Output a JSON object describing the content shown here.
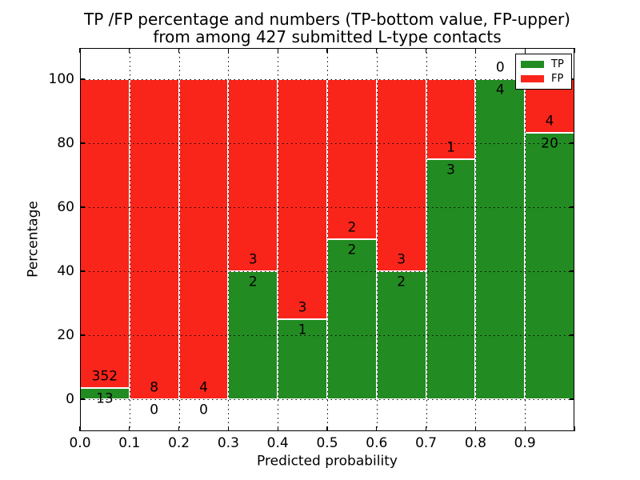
{
  "title": {
    "line1": "TP /FP percentage and numbers (TP-bottom value, FP-upper)",
    "line2": "from among 427 submitted L-type contacts"
  },
  "x_axis": {
    "label": "Predicted probability",
    "tick_labels": [
      "0.0",
      "0.1",
      "0.2",
      "0.3",
      "0.4",
      "0.5",
      "0.6",
      "0.7",
      "0.8",
      "0.9"
    ]
  },
  "y_axis": {
    "label": "Percentage",
    "tick_labels": [
      "0",
      "20",
      "40",
      "60",
      "80",
      "100"
    ]
  },
  "legend": {
    "items": [
      {
        "label": "TP",
        "color": "#228B22"
      },
      {
        "label": "FP",
        "color": "#f9251b"
      }
    ]
  },
  "colors": {
    "tp_green": "#228B22",
    "fp_red": "#f9251b",
    "bar_edge": "#ffffff",
    "grid": "#000000",
    "background": "#ffffff"
  },
  "chart_data": {
    "type": "bar",
    "stacked": true,
    "normalized_to_percent": true,
    "title": "TP /FP percentage and numbers (TP-bottom value, FP-upper) from among 427 submitted L-type contacts",
    "xlabel": "Predicted probability",
    "ylabel": "Percentage",
    "total_submitted_contacts": 427,
    "bin_edges": [
      0.0,
      0.1,
      0.2,
      0.3,
      0.4,
      0.5,
      0.6,
      0.7,
      0.8,
      0.9,
      1.0
    ],
    "categories": [
      "0.0-0.1",
      "0.1-0.2",
      "0.2-0.3",
      "0.3-0.4",
      "0.4-0.5",
      "0.5-0.6",
      "0.6-0.7",
      "0.7-0.8",
      "0.8-0.9",
      "0.9-1.0"
    ],
    "series": [
      {
        "name": "TP",
        "color": "#228B22",
        "counts": [
          13,
          0,
          0,
          2,
          1,
          2,
          2,
          3,
          4,
          20
        ],
        "percent": [
          3.56,
          0,
          0,
          40,
          25,
          50,
          40,
          75,
          100,
          83.33
        ]
      },
      {
        "name": "FP",
        "color": "#f9251b",
        "counts": [
          352,
          8,
          4,
          3,
          3,
          2,
          3,
          1,
          0,
          4
        ],
        "percent": [
          96.44,
          100,
          100,
          60,
          75,
          50,
          60,
          25,
          0,
          16.67
        ]
      }
    ],
    "xlim": [
      0.0,
      1.0
    ],
    "ylim": [
      -10,
      110
    ],
    "grid": true,
    "grid_style": "dotted",
    "legend_position": "upper right"
  }
}
